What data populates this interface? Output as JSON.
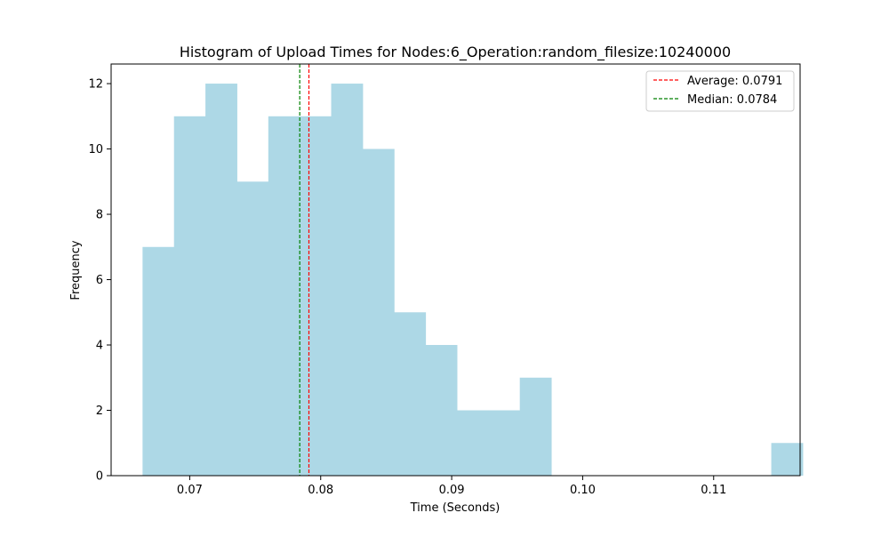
{
  "chart_data": {
    "type": "bar",
    "title": "Histogram of Upload Times for Nodes:6_Operation:random_filesize:10240000",
    "xlabel": "Time (Seconds)",
    "ylabel": "Frequency",
    "xlim": [
      0.064,
      0.1166
    ],
    "ylim": [
      0,
      12.6
    ],
    "xticks": [
      0.07,
      0.08,
      0.09,
      0.1,
      0.11
    ],
    "xtick_labels": [
      "0.07",
      "0.08",
      "0.09",
      "0.10",
      "0.11"
    ],
    "yticks": [
      0,
      2,
      4,
      6,
      8,
      10,
      12
    ],
    "ytick_labels": [
      "0",
      "2",
      "4",
      "6",
      "8",
      "10",
      "12"
    ],
    "bins": {
      "start": 0.0664,
      "width": 0.0024,
      "counts": [
        7,
        11,
        12,
        9,
        11,
        11,
        12,
        10,
        5,
        4,
        2,
        2,
        3,
        0,
        0,
        0,
        0,
        0,
        0,
        0,
        1
      ]
    },
    "bar_color": "#add8e6",
    "grid": false,
    "legend_position": "upper right",
    "lines": [
      {
        "label": "Average: 0.0791",
        "x": 0.0791,
        "color": "#ff0000",
        "style": "dashed"
      },
      {
        "label": "Median: 0.0784",
        "x": 0.0784,
        "color": "#008000",
        "style": "dashed"
      }
    ]
  }
}
